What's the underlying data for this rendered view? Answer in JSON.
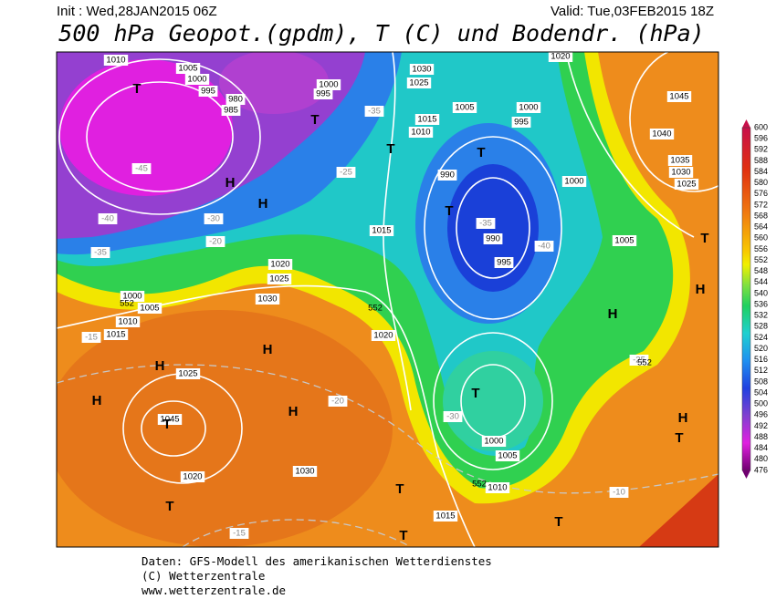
{
  "header": {
    "init": "Init : Wed,28JAN2015 06Z",
    "valid": "Valid: Tue,03FEB2015 18Z",
    "title": "500 hPa Geopot.(gpdm), T (C) und Bodendr. (hPa)"
  },
  "map": {
    "pressure_labels": [
      1010,
      1005,
      1000,
      995,
      985,
      980,
      1000,
      995,
      1030,
      1025,
      1015,
      1010,
      1005,
      1000,
      995,
      1020,
      1000,
      990,
      990,
      995,
      1005,
      1015,
      1020,
      1025,
      1030,
      1000,
      1005,
      1010,
      1015,
      1020,
      1025,
      1030,
      1045,
      1020,
      1000,
      1005,
      1010,
      1015,
      1040,
      1035,
      1030,
      1025,
      1045
    ],
    "temperature_labels": [
      -45,
      -40,
      -35,
      -30,
      -25,
      -20,
      -15,
      -35,
      -40,
      -35,
      -30,
      -25,
      -20,
      -10,
      -15
    ],
    "geopotential_labels": [
      552,
      552,
      552,
      552
    ],
    "centers": [
      "T",
      "T",
      "T",
      "H",
      "H",
      "T",
      "T",
      "H",
      "H",
      "H",
      "H",
      "T",
      "T",
      "T",
      "T",
      "T",
      "T",
      "H",
      "H",
      "H",
      "T",
      "T"
    ]
  },
  "colorbar": {
    "levels": [
      600,
      596,
      592,
      588,
      584,
      580,
      576,
      572,
      568,
      564,
      560,
      556,
      552,
      548,
      544,
      540,
      536,
      532,
      528,
      524,
      520,
      516,
      512,
      508,
      504,
      500,
      496,
      492,
      488,
      484,
      480,
      476
    ]
  },
  "footer": [
    "Daten: GFS-Modell des amerikanischen Wetterdienstes",
    "(C) Wetterzentrale",
    "www.wetterzentrale.de"
  ]
}
